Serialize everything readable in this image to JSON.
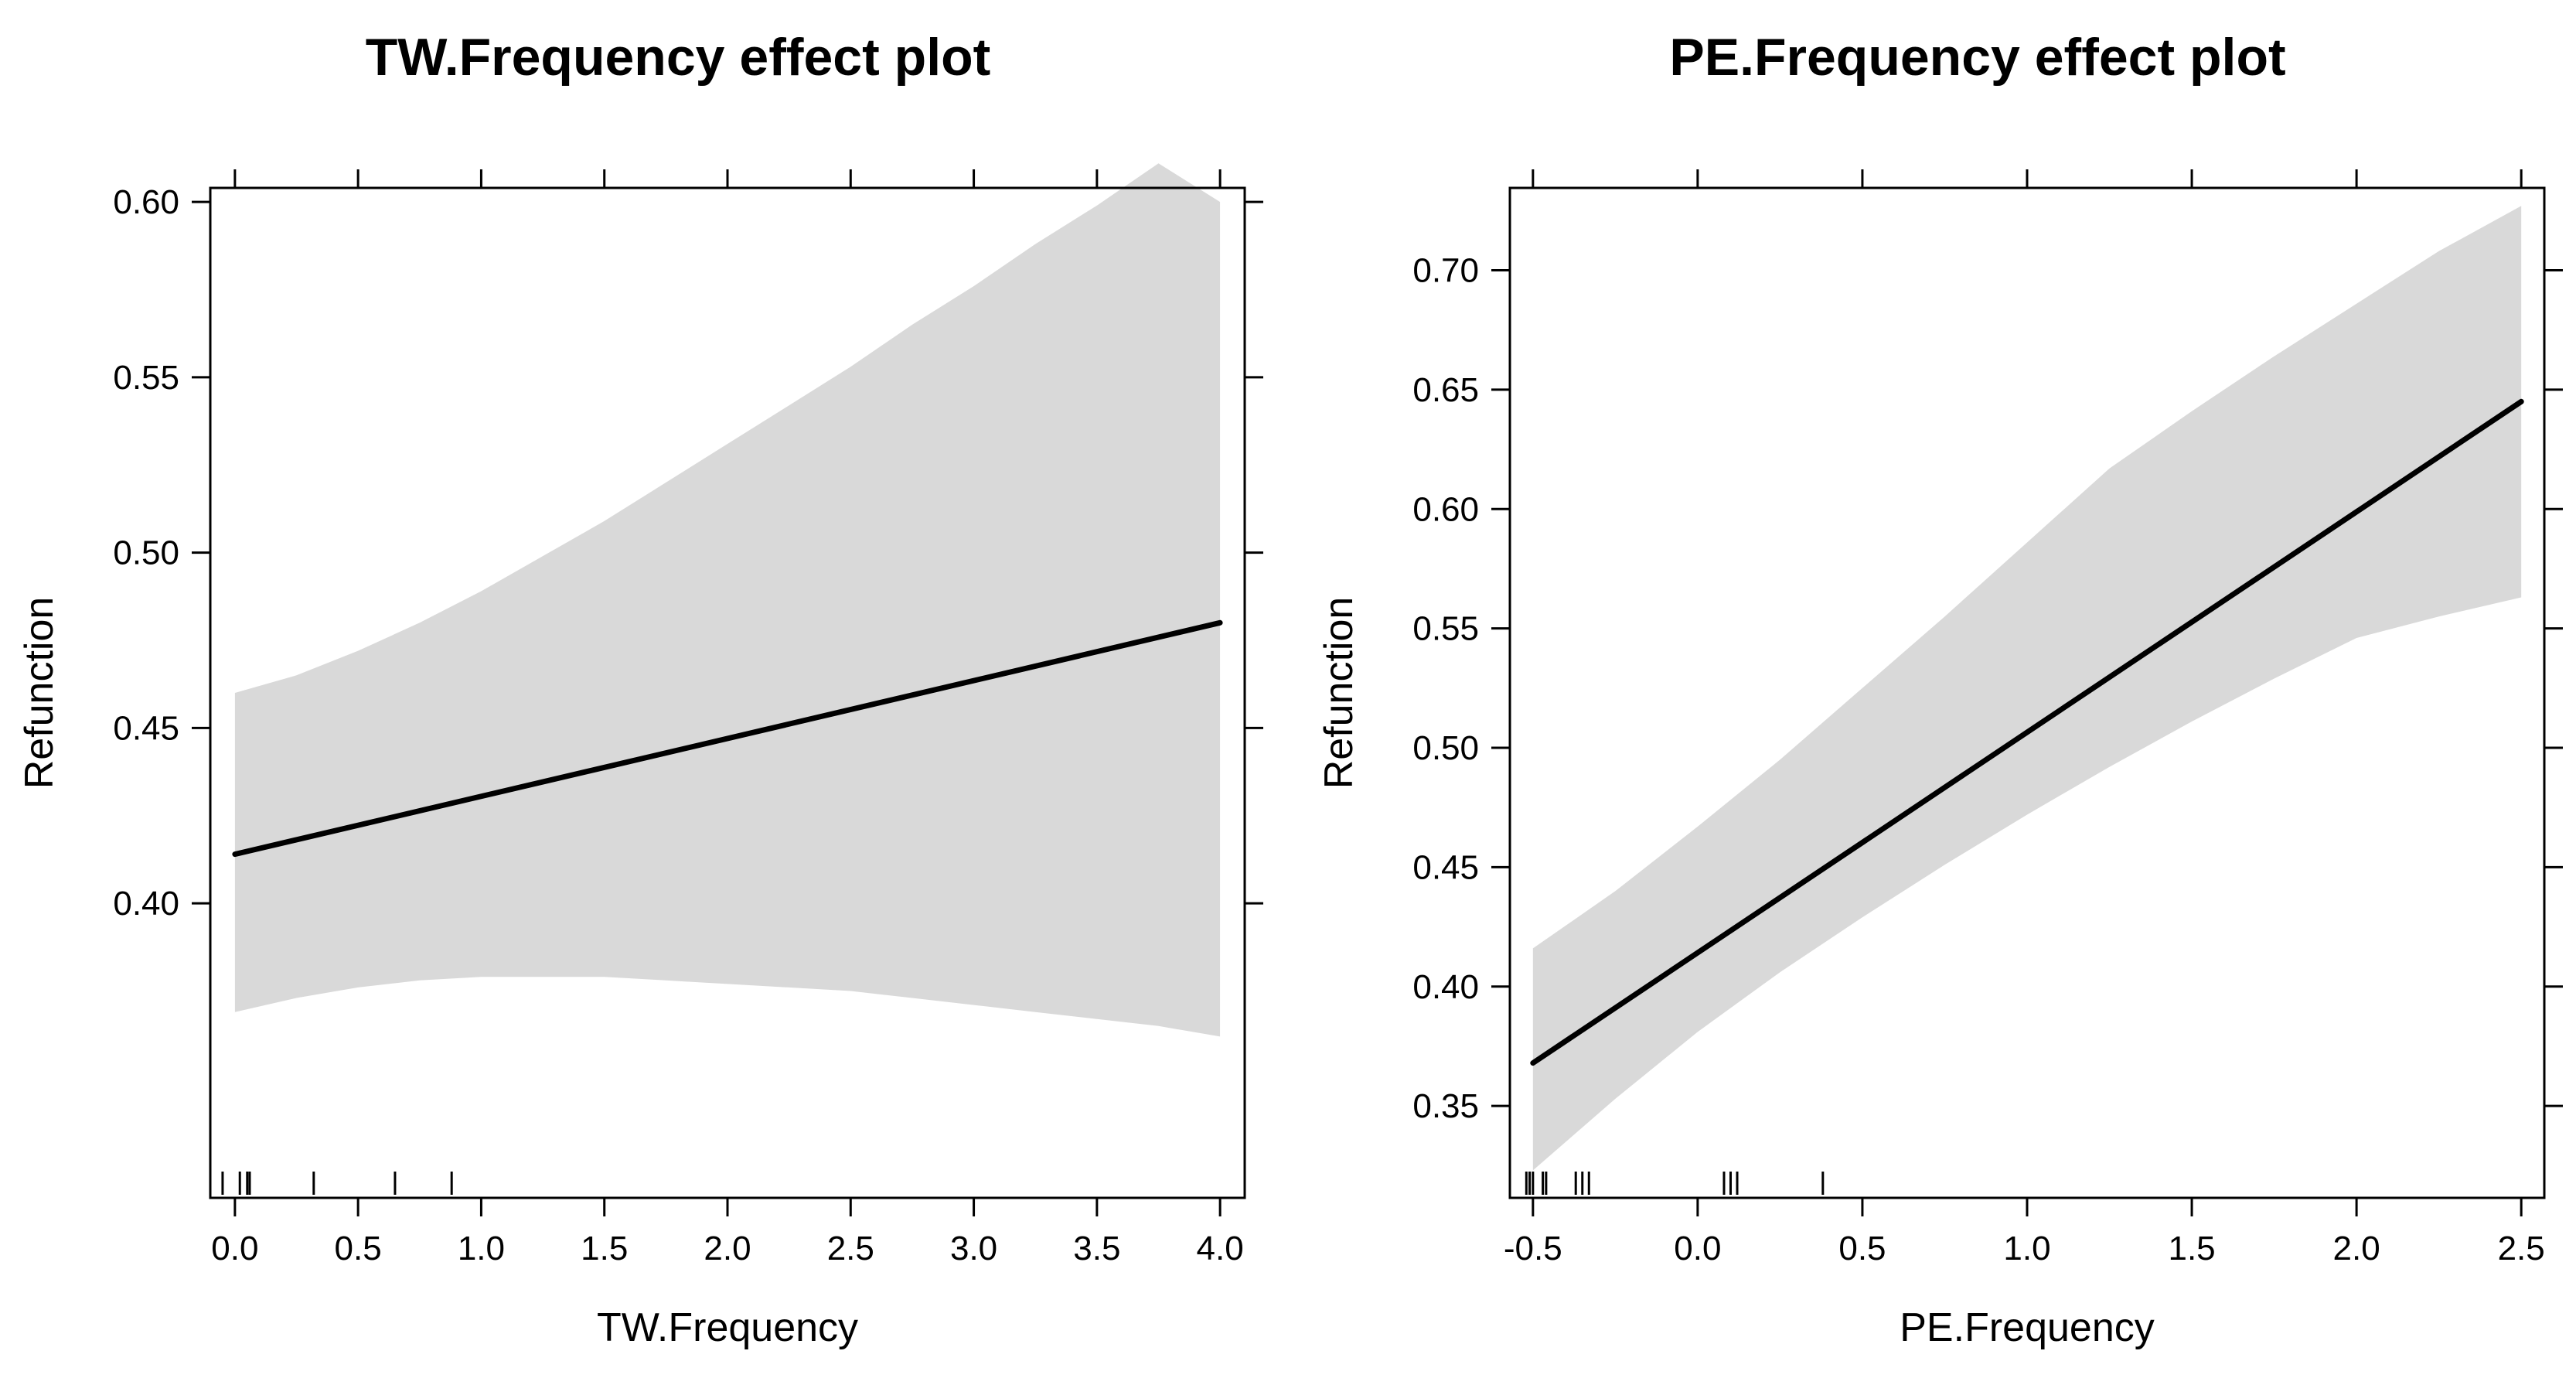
{
  "chart_data": [
    {
      "type": "line",
      "title": "TW.Frequency effect plot",
      "xlabel": "TW.Frequency",
      "ylabel": "Refunction",
      "xlim": [
        -0.1,
        4.1
      ],
      "ylim": [
        0.316,
        0.604
      ],
      "x_ticks": [
        0.0,
        0.5,
        1.0,
        1.5,
        2.0,
        2.5,
        3.0,
        3.5,
        4.0
      ],
      "x_tick_labels": [
        "0.0",
        "0.5",
        "1.0",
        "1.5",
        "2.0",
        "2.5",
        "3.0",
        "3.5",
        "4.0"
      ],
      "y_ticks": [
        0.4,
        0.45,
        0.5,
        0.55,
        0.6
      ],
      "y_tick_labels": [
        "0.40",
        "0.45",
        "0.50",
        "0.55",
        "0.60"
      ],
      "series": [
        {
          "name": "fit",
          "x": [
            0.0,
            4.0
          ],
          "values": [
            0.414,
            0.48
          ]
        },
        {
          "name": "confidence band",
          "x": [
            0.0,
            0.25,
            0.5,
            0.75,
            1.0,
            1.25,
            1.5,
            1.75,
            2.0,
            2.25,
            2.5,
            2.75,
            3.0,
            3.25,
            3.5,
            3.75,
            4.0
          ],
          "upper": [
            0.46,
            0.465,
            0.472,
            0.48,
            0.489,
            0.499,
            0.509,
            0.52,
            0.531,
            0.542,
            0.553,
            0.565,
            0.576,
            0.588,
            0.599,
            0.611,
            0.6
          ],
          "lower": [
            0.369,
            0.373,
            0.376,
            0.378,
            0.379,
            0.379,
            0.379,
            0.378,
            0.377,
            0.376,
            0.375,
            0.373,
            0.371,
            0.369,
            0.367,
            0.365,
            0.362
          ]
        }
      ],
      "rug": [
        -0.05,
        0.02,
        0.05,
        0.06,
        0.32,
        0.65,
        0.88
      ]
    },
    {
      "type": "line",
      "title": "PE.Frequency effect plot",
      "xlabel": "PE.Frequency",
      "ylabel": "Refunction",
      "xlim": [
        -0.57,
        2.57
      ],
      "ylim": [
        0.3115,
        0.7345
      ],
      "x_ticks": [
        -0.5,
        0.0,
        0.5,
        1.0,
        1.5,
        2.0,
        2.5
      ],
      "x_tick_labels": [
        "-0.5",
        "0.0",
        "0.5",
        "1.0",
        "1.5",
        "2.0",
        "2.5"
      ],
      "y_ticks": [
        0.35,
        0.4,
        0.45,
        0.5,
        0.55,
        0.6,
        0.65,
        0.7
      ],
      "y_tick_labels": [
        "0.35",
        "0.40",
        "0.45",
        "0.50",
        "0.55",
        "0.60",
        "0.65",
        "0.70"
      ],
      "series": [
        {
          "name": "fit",
          "x": [
            -0.5,
            2.5
          ],
          "values": [
            0.368,
            0.645
          ]
        },
        {
          "name": "confidence band",
          "x": [
            -0.5,
            -0.25,
            0.0,
            0.25,
            0.5,
            0.75,
            1.0,
            1.25,
            1.5,
            1.75,
            2.0,
            2.25,
            2.5
          ],
          "upper": [
            0.416,
            0.44,
            0.467,
            0.495,
            0.525,
            0.555,
            0.586,
            0.617,
            0.641,
            0.664,
            0.686,
            0.708,
            0.727
          ],
          "lower": [
            0.323,
            0.353,
            0.381,
            0.406,
            0.429,
            0.451,
            0.472,
            0.492,
            0.511,
            0.529,
            0.546,
            0.555,
            0.563
          ]
        }
      ],
      "rug": [
        -0.52,
        -0.51,
        -0.5,
        -0.47,
        -0.46,
        -0.37,
        -0.35,
        -0.33,
        0.08,
        0.1,
        0.12,
        0.38
      ]
    }
  ]
}
